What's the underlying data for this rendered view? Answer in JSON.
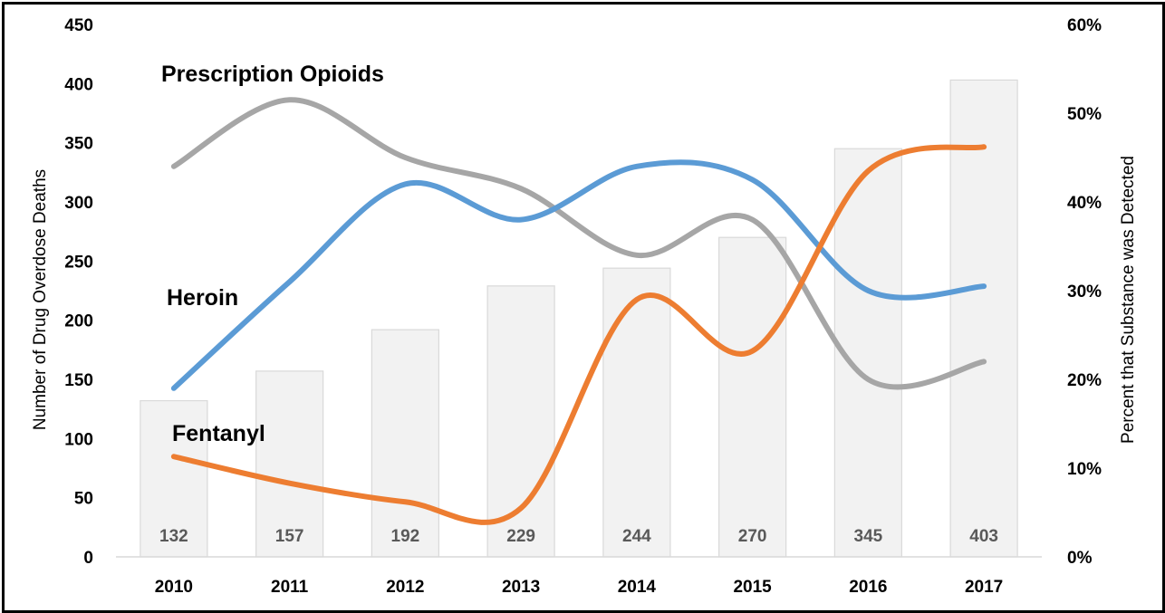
{
  "chart_data": {
    "type": "bar",
    "categories": [
      "2010",
      "2011",
      "2012",
      "2013",
      "2014",
      "2015",
      "2016",
      "2017"
    ],
    "bars": {
      "values": [
        132,
        157,
        192,
        229,
        244,
        270,
        345,
        403
      ],
      "color": "#f2f2f2",
      "stroke": "#d9d9d9",
      "label_color": "#595959"
    },
    "lines": [
      {
        "name": "Prescription Opioids",
        "color": "#a6a6a6",
        "values": [
          44,
          51.5,
          45,
          41.5,
          34,
          38,
          20,
          22
        ]
      },
      {
        "name": "Heroin",
        "color": "#5b9bd5",
        "values": [
          19,
          31,
          42,
          38,
          44,
          42.5,
          30,
          30.5
        ]
      },
      {
        "name": "Fentanyl",
        "color": "#ed7d31",
        "values": [
          11.3,
          8.3,
          6.2,
          5.5,
          29,
          23.2,
          43.5,
          46.2
        ]
      }
    ],
    "ylabel": "Number of Drug Overdose Deaths",
    "ylim": [
      0,
      450
    ],
    "yticks": [
      "0",
      "50",
      "100",
      "150",
      "200",
      "250",
      "300",
      "350",
      "400",
      "450"
    ],
    "y2label": "Percent that Substance was Detected",
    "y2lim": [
      0,
      60
    ],
    "y2ticks": [
      "0%",
      "10%",
      "20%",
      "30%",
      "40%",
      "50%",
      "60%"
    ],
    "grid": false,
    "legend": "inline labels"
  }
}
